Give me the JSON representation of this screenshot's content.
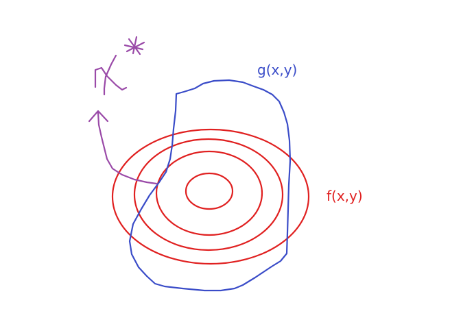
{
  "diagram": {
    "constraint_label": "g(x,y)",
    "objective_label": "f(x,y)",
    "colors": {
      "objective": "#e02020",
      "constraint": "#3a4cc8",
      "annotation": "#9a4aa8"
    }
  }
}
